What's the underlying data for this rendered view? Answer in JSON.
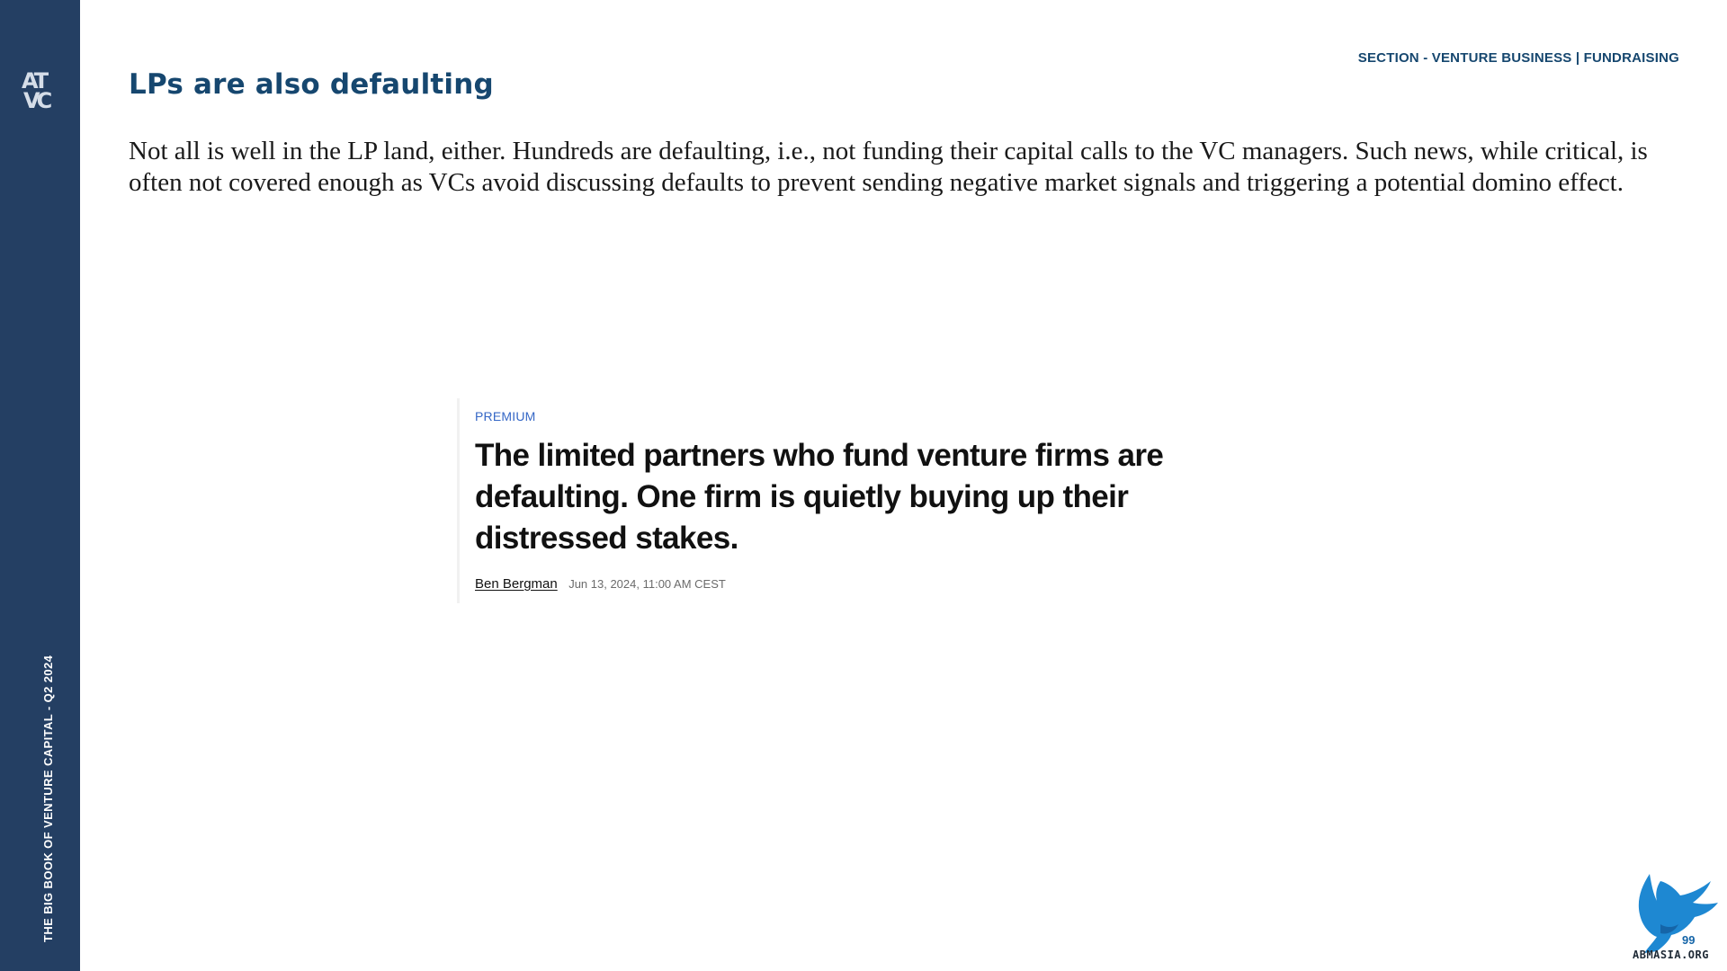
{
  "sidebar": {
    "logo": {
      "line1": "AT",
      "line2": "VC",
      "icon": "atvc-logo-icon",
      "color": "#d5dde8"
    },
    "caption": "THE BIG BOOK OF VENTURE CAPITAL - Q2 2024",
    "background_color": "#243f63"
  },
  "header": {
    "section_label": "SECTION - VENTURE BUSINESS | FUNDRAISING",
    "title": "LPs are also defaulting",
    "accent_color": "#16476f"
  },
  "body": {
    "intro": "Not all is well in the LP land, either. Hundreds are defaulting, i.e., not funding their capital calls to the VC managers. Such news, while critical, is often not covered enough as VCs avoid discussing defaults to prevent sending negative market signals and triggering a potential domino effect."
  },
  "article": {
    "badge": "PREMIUM",
    "badge_color": "#3567c6",
    "headline": "The limited partners who fund venture firms are defaulting. One firm is quietly buying up their distressed stakes.",
    "author": "Ben Bergman",
    "timestamp": "Jun 13, 2024, 11:00 AM CEST"
  },
  "watermark": {
    "icon": "eagle-icon",
    "text": "ABMASIA.ORG",
    "page_number": "99",
    "color": "#1e88d2"
  }
}
